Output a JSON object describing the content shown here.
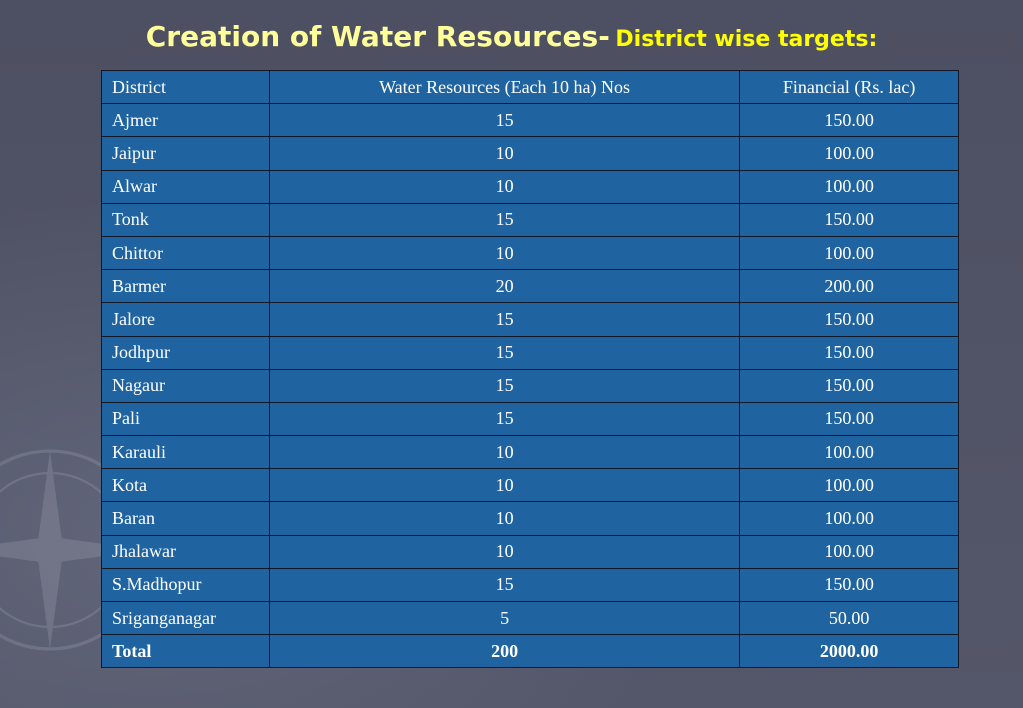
{
  "slide": {
    "title_main": "Creation of Water Resources-",
    "title_sub": "District wise targets:"
  },
  "table": {
    "headers": [
      "District",
      "Water Resources (Each 10 ha) Nos",
      "Financial (Rs. lac)"
    ],
    "rows": [
      [
        "Ajmer",
        "15",
        "150.00"
      ],
      [
        "Jaipur",
        "10",
        "100.00"
      ],
      [
        "Alwar",
        "10",
        "100.00"
      ],
      [
        "Tonk",
        "15",
        "150.00"
      ],
      [
        "Chittor",
        "10",
        "100.00"
      ],
      [
        "Barmer",
        "20",
        "200.00"
      ],
      [
        "Jalore",
        "15",
        "150.00"
      ],
      [
        "Jodhpur",
        "15",
        "150.00"
      ],
      [
        "Nagaur",
        "15",
        "150.00"
      ],
      [
        "Pali",
        "15",
        "150.00"
      ],
      [
        "Karauli",
        "10",
        "100.00"
      ],
      [
        "Kota",
        "10",
        "100.00"
      ],
      [
        "Baran",
        "10",
        "100.00"
      ],
      [
        "Jhalawar",
        "10",
        "100.00"
      ],
      [
        "S.Madhopur",
        "15",
        "150.00"
      ],
      [
        "Sriganganagar",
        "5",
        "50.00"
      ]
    ],
    "total": [
      "Total",
      "200",
      "2000.00"
    ]
  }
}
